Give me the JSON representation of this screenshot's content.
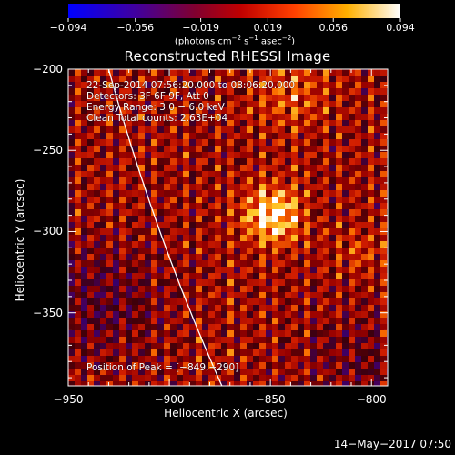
{
  "chart_data": {
    "type": "heatmap",
    "title": "Reconstructed RHESSI Image",
    "xlabel": "Heliocentric X (arcsec)",
    "ylabel": "Heliocentric Y (arcsec)",
    "xlim": [
      -950,
      -792
    ],
    "ylim": [
      -395,
      -200
    ],
    "x_ticks": [
      -950,
      -900,
      -850,
      -800
    ],
    "x_tick_labels": [
      "−950",
      "−900",
      "−850",
      "−800"
    ],
    "y_ticks": [
      -200,
      -250,
      -300,
      -350
    ],
    "y_tick_labels": [
      "−200",
      "−250",
      "−300",
      "−350"
    ],
    "colorbar": {
      "range": [
        -0.094,
        0.094
      ],
      "ticks": [
        -0.094,
        -0.056,
        -0.019,
        0.019,
        0.056,
        0.094
      ],
      "tick_labels": [
        "−0.094",
        "−0.056",
        "−0.019",
        "0.019",
        "0.056",
        "0.094"
      ],
      "unit_label": {
        "pre": "(photons cm",
        "e1": "−2",
        "mid1": " s",
        "e2": "−1",
        "mid2": " asec",
        "e3": "−2",
        "post": ")"
      },
      "colormap": "hot (blue-purple-red-orange-yellow-white)"
    },
    "info_lines": [
      "22-Sep-2014 07:56:20.000 to 08:06:20.000",
      "Detectors: 3F 6F 9F, Att 0",
      "Energy Range: 3.0 − 6.0 keV",
      "Clean      Total counts: 2.63E+04"
    ],
    "peak_text": "Position of Peak = [−849,−290]",
    "peak": {
      "x": -849,
      "y": -290
    },
    "limb": [
      [
        -930,
        -200
      ],
      [
        -910,
        -300
      ],
      [
        -874,
        -395
      ]
    ],
    "grid": false
  },
  "footer": {
    "timestamp": "14−May−2017 07:50"
  },
  "colors": {
    "background": "#000000",
    "foreground": "#ffffff"
  }
}
